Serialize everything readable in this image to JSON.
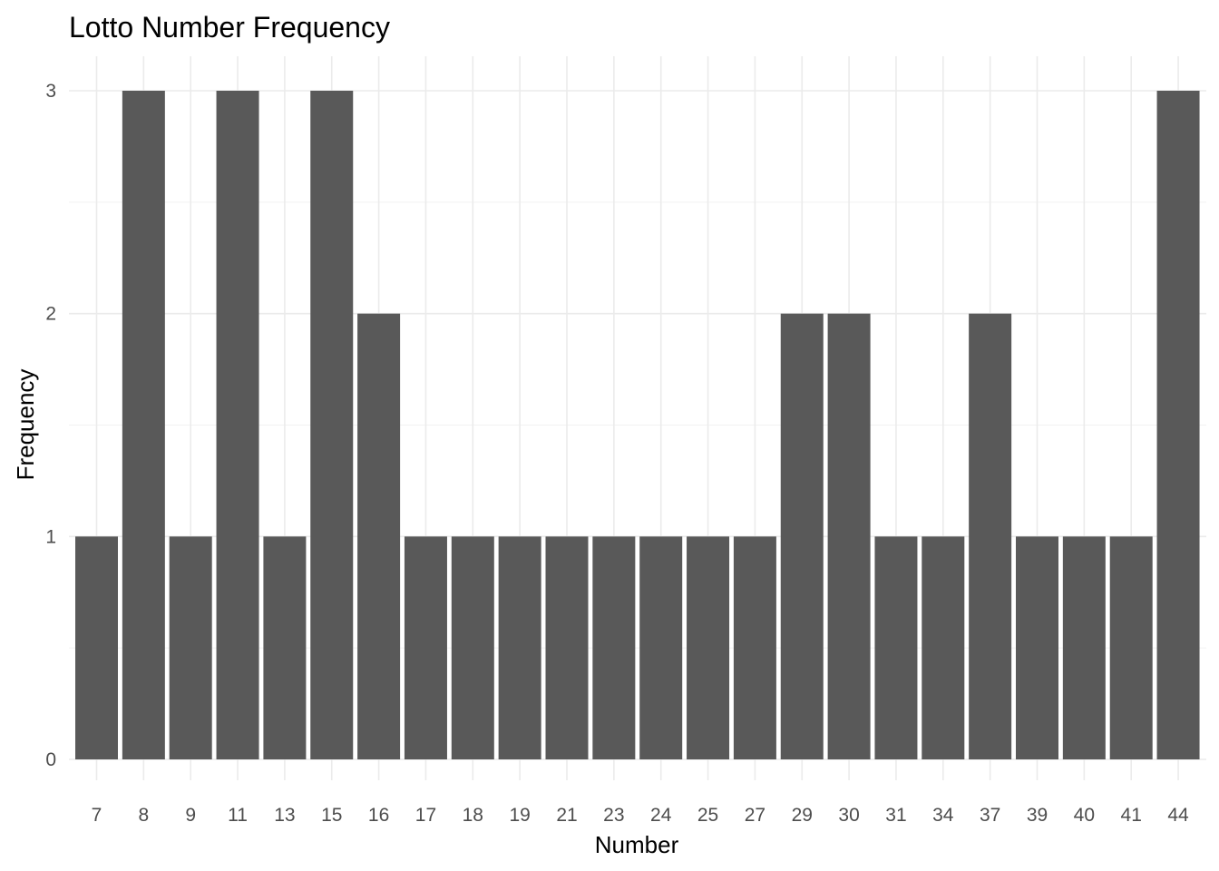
{
  "chart_data": {
    "type": "bar",
    "title": "Lotto Number Frequency",
    "xlabel": "Number",
    "ylabel": "Frequency",
    "categories": [
      "7",
      "8",
      "9",
      "11",
      "13",
      "15",
      "16",
      "17",
      "18",
      "19",
      "21",
      "23",
      "24",
      "25",
      "27",
      "29",
      "30",
      "31",
      "34",
      "37",
      "39",
      "40",
      "41",
      "44"
    ],
    "values": [
      1,
      3,
      1,
      3,
      1,
      3,
      2,
      1,
      1,
      1,
      1,
      1,
      1,
      1,
      1,
      2,
      2,
      1,
      1,
      2,
      1,
      1,
      1,
      3
    ],
    "ylim": [
      0,
      3
    ],
    "yticks": [
      0,
      1,
      2,
      3
    ],
    "grid": true,
    "legend": "none",
    "bar_color": "#595959"
  }
}
